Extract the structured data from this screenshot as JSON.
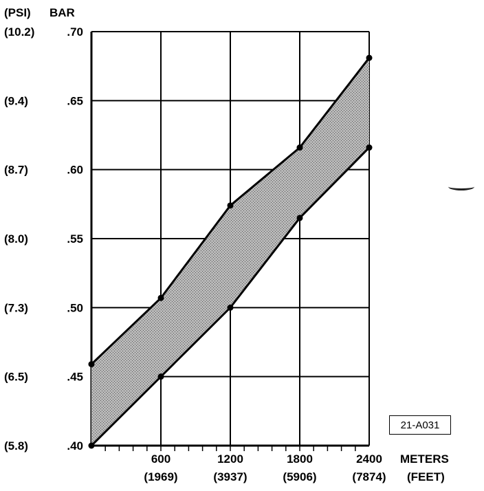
{
  "chart_data": {
    "type": "area",
    "left_header_unit": "(PSI)",
    "right_header_unit": "BAR",
    "y_ticks": [
      {
        "bar": 0.4,
        "bar_label": ".40",
        "psi_label": "(5.8)"
      },
      {
        "bar": 0.45,
        "bar_label": ".45",
        "psi_label": "(6.5)"
      },
      {
        "bar": 0.5,
        "bar_label": ".50",
        "psi_label": "(7.3)"
      },
      {
        "bar": 0.55,
        "bar_label": ".55",
        "psi_label": "(8.0)"
      },
      {
        "bar": 0.6,
        "bar_label": ".60",
        "psi_label": "(8.7)"
      },
      {
        "bar": 0.65,
        "bar_label": ".65",
        "psi_label": "(9.4)"
      },
      {
        "bar": 0.7,
        "bar_label": ".70",
        "psi_label": "(10.2)"
      }
    ],
    "x_ticks": [
      {
        "meters": 600,
        "meters_label": "600",
        "feet_label": "(1969)"
      },
      {
        "meters": 1200,
        "meters_label": "1200",
        "feet_label": "(3937)"
      },
      {
        "meters": 1800,
        "meters_label": "1800",
        "feet_label": "(5906)"
      },
      {
        "meters": 2400,
        "meters_label": "2400",
        "feet_label": "(7874)"
      }
    ],
    "x_unit_primary": "METERS",
    "x_unit_secondary": "(FEET)",
    "xlim": [
      0,
      2400
    ],
    "ylim": [
      0.4,
      0.7
    ],
    "grid": true,
    "upper_boundary": [
      [
        0,
        0.459
      ],
      [
        600,
        0.507
      ],
      [
        1200,
        0.574
      ],
      [
        1800,
        0.616
      ],
      [
        2400,
        0.681
      ]
    ],
    "lower_boundary": [
      [
        0,
        0.4
      ],
      [
        600,
        0.45
      ],
      [
        1200,
        0.5
      ],
      [
        1800,
        0.565
      ],
      [
        2400,
        0.616
      ]
    ],
    "fill_color": "#b8b8b8"
  },
  "reference_label": "21-A031"
}
